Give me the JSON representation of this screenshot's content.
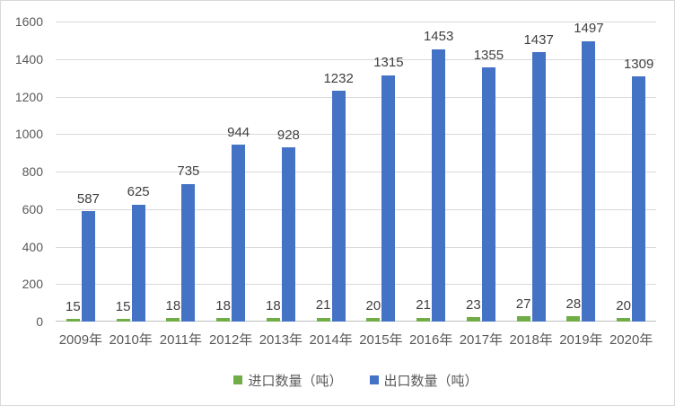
{
  "chart_data": {
    "type": "bar",
    "title": "",
    "categories": [
      "2009年",
      "2010年",
      "2011年",
      "2012年",
      "2013年",
      "2014年",
      "2015年",
      "2016年",
      "2017年",
      "2018年",
      "2019年",
      "2020年"
    ],
    "series": [
      {
        "name": "进口数量（吨）",
        "color": "#70AD47",
        "values": [
          15,
          15,
          18,
          18,
          18,
          21,
          20,
          21,
          23,
          27,
          28,
          20
        ]
      },
      {
        "name": "出口数量（吨）",
        "color": "#4472C4",
        "values": [
          587,
          625,
          735,
          944,
          928,
          1232,
          1315,
          1453,
          1355,
          1437,
          1497,
          1309
        ]
      }
    ],
    "xlabel": "",
    "ylabel": "",
    "ylim": [
      0,
      1600
    ],
    "yticks": [
      "0",
      "200",
      "400",
      "600",
      "800",
      "1000",
      "1200",
      "1400",
      "1600"
    ],
    "grid": true,
    "data_labels": true,
    "legend_position": "bottom"
  },
  "colors": {
    "background": "#ffffff",
    "border": "#d9d9d9",
    "gridline": "#d9d9d9",
    "axis_line": "#bfbfbf",
    "axis_text": "#595959",
    "data_label_text": "#404040",
    "import_series": "#70AD47",
    "export_series": "#4472C4"
  }
}
